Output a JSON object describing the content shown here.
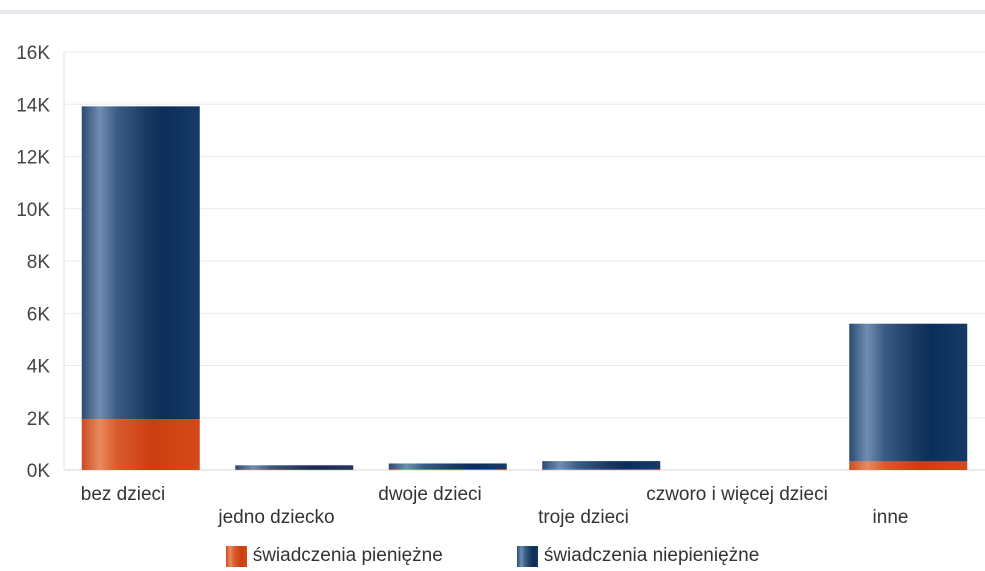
{
  "chart_data": {
    "type": "bar",
    "stacked": true,
    "title": "",
    "xlabel": "",
    "ylabel": "",
    "categories": [
      "bez dzieci",
      "jedno dziecko",
      "dwoje dzieci",
      "troje dzieci",
      "czworo i więcej dzieci",
      "inne"
    ],
    "series": [
      {
        "name": "świadczenia pieniężne",
        "color": "#d24a1e",
        "values": [
          1950,
          20,
          30,
          40,
          0,
          330
        ]
      },
      {
        "name": "świadczenia niepieniężne",
        "color": "#1d406b",
        "values": [
          11970,
          160,
          220,
          300,
          0,
          5270
        ]
      }
    ],
    "ylim": [
      0,
      16000
    ],
    "yticks": [
      "0K",
      "2K",
      "4K",
      "6K",
      "8K",
      "10K",
      "12K",
      "14K",
      "16K"
    ],
    "grid": true,
    "legend_position": "bottom"
  }
}
